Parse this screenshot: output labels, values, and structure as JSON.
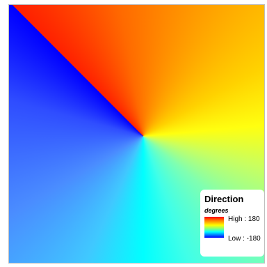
{
  "map": {
    "layer": "Direction raster",
    "colors": {
      "low": "#0000ff",
      "mid_low": "#00ffff",
      "mid": "#ffff00",
      "mid_high": "#ff8000",
      "high": "#ff0000"
    }
  },
  "legend": {
    "title": "Direction",
    "units": "degrees",
    "high_label": "High : 180",
    "low_label": "Low : -180"
  }
}
